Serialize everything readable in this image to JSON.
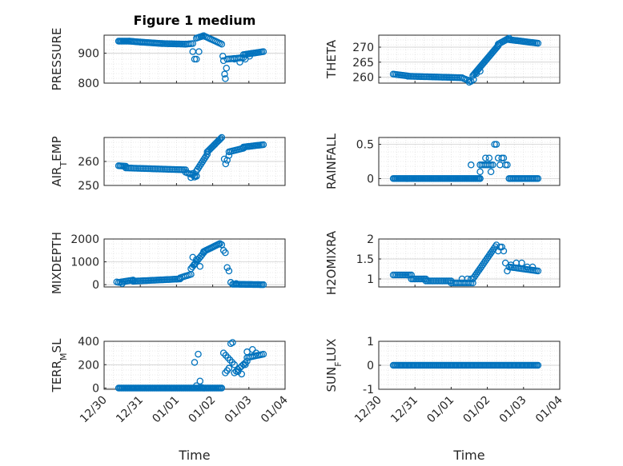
{
  "figure": {
    "title": "Figure 1 medium"
  },
  "colors": {
    "marker": "#0072BD",
    "axis": "#262626",
    "grid": "#b0b0b0"
  },
  "chart_data": [
    {
      "type": "scatter",
      "ylabel": "PRESSURE",
      "ylim": [
        800,
        960
      ],
      "yticks": [
        800,
        900
      ],
      "xlim": [
        0,
        5
      ],
      "xticks": [
        "12/30",
        "12/31",
        "01/01",
        "01/02",
        "01/03",
        "01/04"
      ],
      "grid": true,
      "segments": [
        {
          "x0": 0.4,
          "x1": 0.7,
          "y0": 940,
          "y1": 940,
          "n": 10
        },
        {
          "x0": 0.7,
          "x1": 1.0,
          "y0": 940,
          "y1": 937,
          "n": 9
        },
        {
          "x0": 1.0,
          "x1": 1.6,
          "y0": 937,
          "y1": 932,
          "n": 16
        },
        {
          "x0": 1.6,
          "x1": 2.25,
          "y0": 932,
          "y1": 930,
          "n": 16
        },
        {
          "x0": 2.25,
          "x1": 2.45,
          "y0": 930,
          "y1": 932,
          "n": 5
        },
        {
          "x0": 2.55,
          "x1": 2.75,
          "y0": 950,
          "y1": 958,
          "n": 6
        },
        {
          "x0": 2.75,
          "x1": 3.25,
          "y0": 958,
          "y1": 930,
          "n": 12
        },
        {
          "x0": 3.4,
          "x1": 3.85,
          "y0": 880,
          "y1": 885,
          "n": 10
        },
        {
          "x0": 3.85,
          "x1": 4.4,
          "y0": 895,
          "y1": 905,
          "n": 14
        }
      ],
      "points": [
        [
          2.45,
          905
        ],
        [
          2.5,
          880
        ],
        [
          2.55,
          880
        ],
        [
          2.62,
          905
        ],
        [
          3.28,
          890
        ],
        [
          3.3,
          875
        ],
        [
          3.33,
          830
        ],
        [
          3.35,
          815
        ],
        [
          3.38,
          850
        ],
        [
          3.6,
          880
        ],
        [
          3.75,
          870
        ],
        [
          3.9,
          880
        ],
        [
          4.02,
          890
        ]
      ]
    },
    {
      "type": "scatter",
      "ylabel": "THETA",
      "ylim": [
        258,
        274
      ],
      "yticks": [
        260,
        265,
        270
      ],
      "xlim": [
        0,
        5
      ],
      "xticks": [
        "12/30",
        "12/31",
        "01/01",
        "01/02",
        "01/03",
        "01/04"
      ],
      "grid": true,
      "segments": [
        {
          "x0": 0.4,
          "x1": 0.8,
          "y0": 261,
          "y1": 260.4,
          "n": 10
        },
        {
          "x0": 0.8,
          "x1": 2.3,
          "y0": 260.3,
          "y1": 259.8,
          "n": 34
        },
        {
          "x0": 2.35,
          "x1": 2.55,
          "y0": 259.5,
          "y1": 258.6,
          "n": 5
        },
        {
          "x0": 2.6,
          "x1": 3.3,
          "y0": 260.5,
          "y1": 270.5,
          "n": 26
        },
        {
          "x0": 3.3,
          "x1": 3.6,
          "y0": 271,
          "y1": 273,
          "n": 9
        },
        {
          "x0": 3.6,
          "x1": 4.4,
          "y0": 272.5,
          "y1": 271.3,
          "n": 20
        }
      ],
      "points": [
        [
          2.5,
          258.3
        ],
        [
          2.62,
          259.2
        ],
        [
          2.7,
          261.2
        ],
        [
          2.8,
          262
        ]
      ]
    },
    {
      "type": "scatter",
      "ylabel": "AIR_TEMP",
      "ylim": [
        250,
        270
      ],
      "yticks": [
        250,
        260
      ],
      "xlim": [
        0,
        5
      ],
      "xticks": [
        "12/30",
        "12/31",
        "01/01",
        "01/02",
        "01/03",
        "01/04"
      ],
      "grid": true,
      "segments": [
        {
          "x0": 0.4,
          "x1": 0.6,
          "y0": 258.2,
          "y1": 258,
          "n": 6
        },
        {
          "x0": 0.6,
          "x1": 2.25,
          "y0": 257.3,
          "y1": 256.5,
          "n": 36
        },
        {
          "x0": 2.25,
          "x1": 2.55,
          "y0": 255.5,
          "y1": 253.8,
          "n": 7
        },
        {
          "x0": 2.55,
          "x1": 2.85,
          "y0": 256,
          "y1": 263,
          "n": 10
        },
        {
          "x0": 2.85,
          "x1": 3.25,
          "y0": 264,
          "y1": 270,
          "n": 14
        },
        {
          "x0": 3.45,
          "x1": 3.85,
          "y0": 264,
          "y1": 265.5,
          "n": 10
        },
        {
          "x0": 3.85,
          "x1": 4.4,
          "y0": 266,
          "y1": 267,
          "n": 14
        }
      ],
      "points": [
        [
          2.4,
          253.3
        ],
        [
          2.45,
          255
        ],
        [
          2.5,
          253.5
        ],
        [
          2.55,
          254
        ],
        [
          3.32,
          261
        ],
        [
          3.36,
          259
        ],
        [
          3.4,
          260.5
        ],
        [
          3.45,
          262.5
        ]
      ]
    },
    {
      "type": "scatter",
      "ylabel": "RAINFALL",
      "ylim": [
        -0.1,
        0.6
      ],
      "yticks": [
        0,
        0.5
      ],
      "xlim": [
        0,
        5
      ],
      "xticks": [
        "12/30",
        "12/31",
        "01/01",
        "01/02",
        "01/03",
        "01/04"
      ],
      "grid": true,
      "segments": [
        {
          "x0": 0.4,
          "x1": 2.8,
          "y0": 0,
          "y1": 0,
          "n": 70
        },
        {
          "x0": 3.6,
          "x1": 4.4,
          "y0": 0,
          "y1": 0,
          "n": 22
        },
        {
          "x0": 2.8,
          "x1": 3.15,
          "y0": 0.2,
          "y1": 0.2,
          "n": 8
        }
      ],
      "points": [
        [
          2.55,
          0.2
        ],
        [
          2.8,
          0.1
        ],
        [
          2.8,
          0
        ],
        [
          2.95,
          0.3
        ],
        [
          3.05,
          0.3
        ],
        [
          3.1,
          0.1
        ],
        [
          3.2,
          0.5
        ],
        [
          3.25,
          0.5
        ],
        [
          3.3,
          0.3
        ],
        [
          3.4,
          0.3
        ],
        [
          3.45,
          0.3
        ],
        [
          3.35,
          0.2
        ],
        [
          3.5,
          0.2
        ],
        [
          3.55,
          0.2
        ]
      ]
    },
    {
      "type": "scatter",
      "ylabel": "MIXDEPTH",
      "ylim": [
        -100,
        2000
      ],
      "yticks": [
        0,
        1000,
        2000
      ],
      "xlim": [
        0,
        5
      ],
      "xticks": [
        "12/30",
        "12/31",
        "01/01",
        "01/02",
        "01/03",
        "01/04"
      ],
      "grid": true,
      "segments": [
        {
          "x0": 0.4,
          "x1": 0.8,
          "y0": 100,
          "y1": 200,
          "n": 10
        },
        {
          "x0": 0.8,
          "x1": 2.1,
          "y0": 150,
          "y1": 250,
          "n": 30
        },
        {
          "x0": 2.1,
          "x1": 2.4,
          "y0": 300,
          "y1": 450,
          "n": 7
        },
        {
          "x0": 2.4,
          "x1": 2.75,
          "y0": 700,
          "y1": 1400,
          "n": 10
        },
        {
          "x0": 2.75,
          "x1": 3.2,
          "y0": 1450,
          "y1": 1800,
          "n": 14
        },
        {
          "x0": 3.55,
          "x1": 4.4,
          "y0": 20,
          "y1": 0,
          "n": 22
        }
      ],
      "points": [
        [
          0.35,
          120
        ],
        [
          0.5,
          50
        ],
        [
          2.45,
          1200
        ],
        [
          2.5,
          900
        ],
        [
          2.55,
          1100
        ],
        [
          2.65,
          800
        ],
        [
          3.25,
          1750
        ],
        [
          3.3,
          1500
        ],
        [
          3.35,
          1400
        ],
        [
          3.4,
          750
        ],
        [
          3.45,
          600
        ],
        [
          3.5,
          100
        ],
        [
          3.65,
          50
        ]
      ]
    },
    {
      "type": "scatter",
      "ylabel": "H2OMIXRA",
      "ylim": [
        0.8,
        2
      ],
      "yticks": [
        1,
        1.5,
        2
      ],
      "xlim": [
        0,
        5
      ],
      "xticks": [
        "12/30",
        "12/31",
        "01/01",
        "01/02",
        "01/03",
        "01/04"
      ],
      "grid": true,
      "segments": [
        {
          "x0": 0.4,
          "x1": 0.9,
          "y0": 1.1,
          "y1": 1.1,
          "n": 12
        },
        {
          "x0": 0.9,
          "x1": 1.3,
          "y0": 1.0,
          "y1": 1.0,
          "n": 10
        },
        {
          "x0": 1.3,
          "x1": 2.0,
          "y0": 0.95,
          "y1": 0.95,
          "n": 16
        },
        {
          "x0": 2.0,
          "x1": 2.6,
          "y0": 0.9,
          "y1": 0.9,
          "n": 12
        },
        {
          "x0": 2.6,
          "x1": 3.25,
          "y0": 1.0,
          "y1": 1.85,
          "n": 20
        },
        {
          "x0": 3.6,
          "x1": 4.4,
          "y0": 1.3,
          "y1": 1.2,
          "n": 18
        }
      ],
      "points": [
        [
          2.3,
          1.0
        ],
        [
          2.45,
          1.0
        ],
        [
          2.55,
          1.0
        ],
        [
          3.3,
          1.7
        ],
        [
          3.35,
          1.8
        ],
        [
          3.4,
          1.8
        ],
        [
          3.45,
          1.7
        ],
        [
          3.5,
          1.4
        ],
        [
          3.55,
          1.2
        ],
        [
          3.65,
          1.35
        ],
        [
          3.8,
          1.4
        ],
        [
          3.95,
          1.4
        ],
        [
          4.1,
          1.3
        ],
        [
          4.25,
          1.3
        ]
      ]
    },
    {
      "type": "scatter",
      "ylabel": "TERR_MSL",
      "ylim": [
        -10,
        400
      ],
      "yticks": [
        0,
        200,
        400
      ],
      "xlim": [
        0,
        5
      ],
      "xticks": [
        "12/30",
        "12/31",
        "01/01",
        "01/02",
        "01/03",
        "01/04"
      ],
      "grid": true,
      "segments": [
        {
          "x0": 0.4,
          "x1": 3.25,
          "y0": 0,
          "y1": 0,
          "n": 80
        },
        {
          "x0": 3.3,
          "x1": 3.6,
          "y0": 300,
          "y1": 200,
          "n": 6
        },
        {
          "x0": 3.6,
          "x1": 3.95,
          "y0": 130,
          "y1": 230,
          "n": 8
        },
        {
          "x0": 3.95,
          "x1": 4.4,
          "y0": 260,
          "y1": 290,
          "n": 10
        }
      ],
      "points": [
        [
          2.5,
          220
        ],
        [
          2.6,
          290
        ],
        [
          2.55,
          20
        ],
        [
          2.65,
          60
        ],
        [
          2.7,
          5
        ],
        [
          3.35,
          130
        ],
        [
          3.4,
          150
        ],
        [
          3.45,
          170
        ],
        [
          3.5,
          380
        ],
        [
          3.55,
          390
        ],
        [
          3.7,
          140
        ],
        [
          3.8,
          120
        ],
        [
          3.9,
          200
        ],
        [
          3.95,
          310
        ],
        [
          4.1,
          330
        ],
        [
          4.2,
          300
        ]
      ]
    },
    {
      "type": "scatter",
      "ylabel": "SUN_FLUX",
      "ylim": [
        -1,
        1
      ],
      "yticks": [
        -1,
        0,
        1
      ],
      "xlim": [
        0,
        5
      ],
      "xticks": [
        "12/30",
        "12/31",
        "01/01",
        "01/02",
        "01/03",
        "01/04"
      ],
      "grid": true,
      "segments": [
        {
          "x0": 0.4,
          "x1": 4.4,
          "y0": 0,
          "y1": 0,
          "n": 110
        }
      ],
      "points": []
    }
  ],
  "labels": {
    "xlabel": "Time"
  }
}
